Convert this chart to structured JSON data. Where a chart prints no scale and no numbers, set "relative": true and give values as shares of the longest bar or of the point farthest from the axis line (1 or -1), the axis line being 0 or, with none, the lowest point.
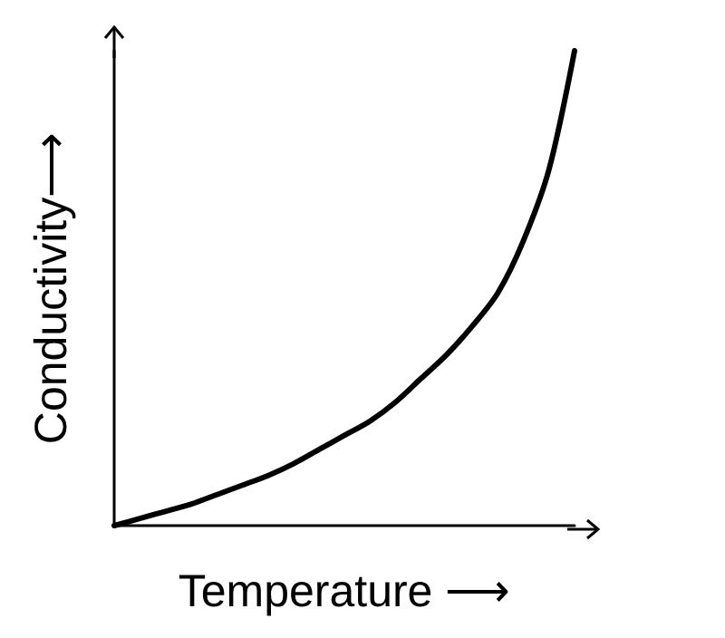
{
  "chart_data": {
    "type": "line",
    "relative": true,
    "xlabel": "Temperature ⟶",
    "ylabel": "Conductivity⟶",
    "grid": false,
    "marker": "none",
    "line_style": "solid",
    "categories": [
      null,
      null,
      null,
      null,
      null,
      null,
      null,
      null,
      null,
      null,
      null,
      null,
      null,
      null,
      null,
      null,
      null,
      null,
      null
    ],
    "series": [
      {
        "color": "#000000",
        "values": [
          0,
          0.015,
          0.03,
          0.045,
          0.065,
          0.085,
          0.105,
          0.13,
          0.16,
          0.19,
          0.22,
          0.26,
          0.31,
          0.36,
          0.42,
          0.49,
          0.6,
          0.75,
          1.0
        ]
      }
    ]
  }
}
